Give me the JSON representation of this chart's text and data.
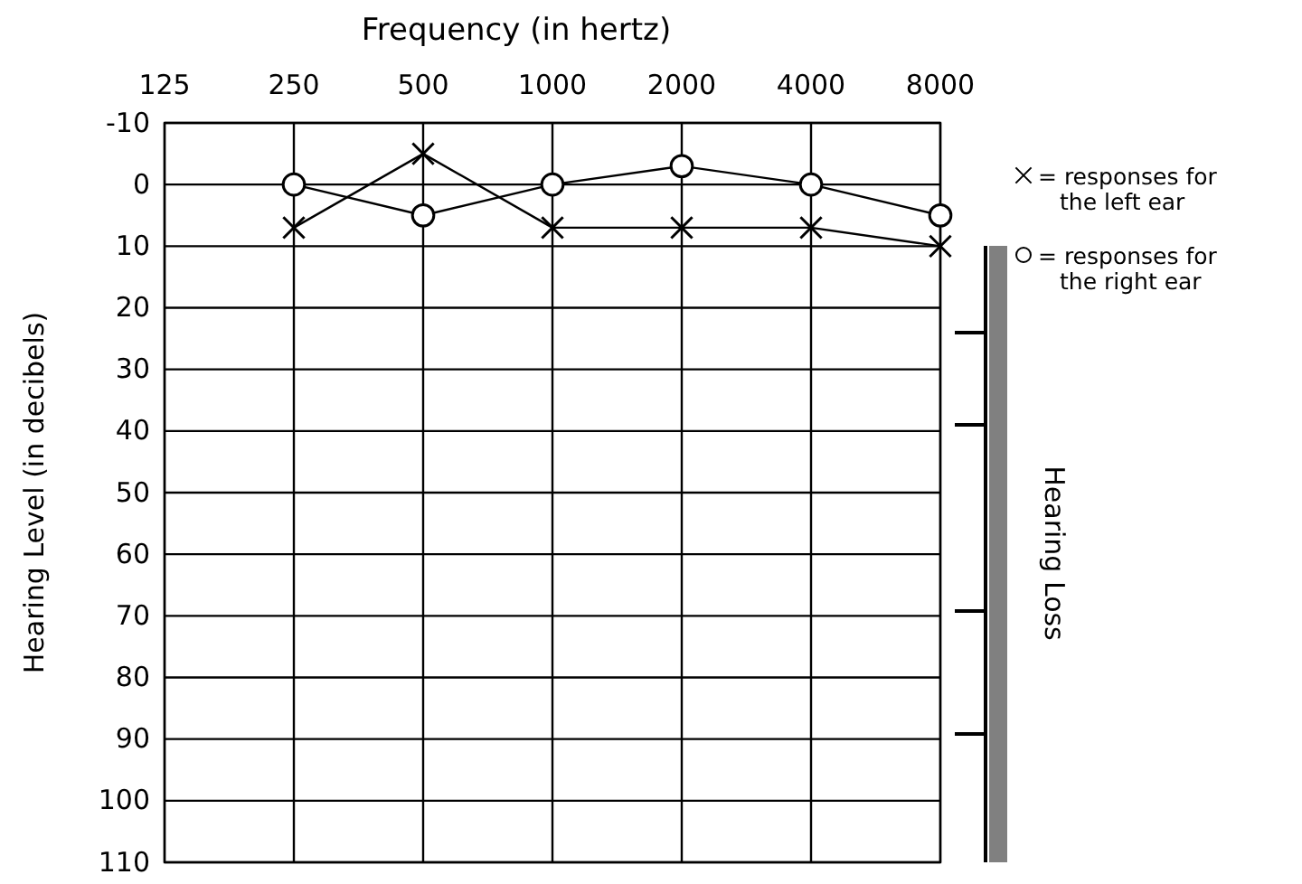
{
  "chart_data": {
    "type": "line",
    "xlabel": "Frequency (in hertz)",
    "ylabel": "Hearing Level (in decibels)",
    "categories": [
      "125",
      "250",
      "500",
      "1000",
      "2000",
      "4000",
      "8000"
    ],
    "series": [
      {
        "name": "= responses for the left ear",
        "color": "#000000",
        "marker": "cross",
        "values": [
          null,
          7,
          -5,
          7,
          7,
          7,
          10
        ]
      },
      {
        "name": "= responses for the right ear",
        "color": "#000000",
        "marker": "circle",
        "values": [
          null,
          0,
          5,
          0,
          -3,
          0,
          5
        ]
      }
    ],
    "ylim": [
      110,
      -10
    ],
    "yticks": [
      -10,
      0,
      10,
      20,
      30,
      40,
      50,
      60,
      70,
      80,
      90,
      100,
      110
    ],
    "grid": true,
    "legend": "right",
    "annotations": [
      "Hearing Loss"
    ]
  }
}
